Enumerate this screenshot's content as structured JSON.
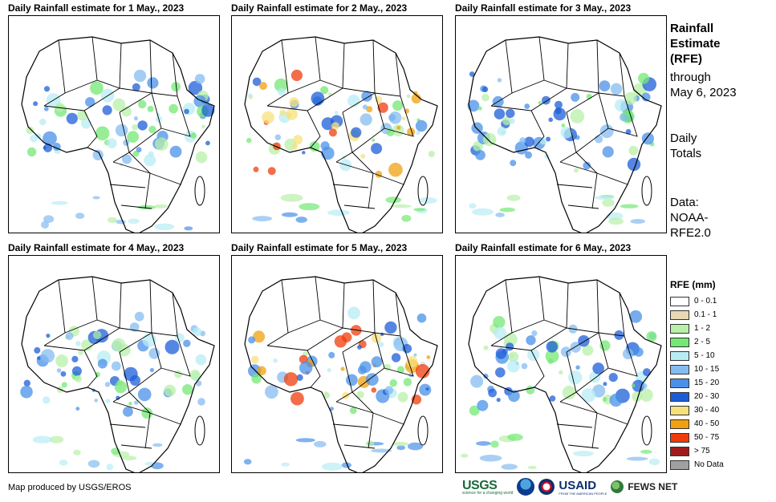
{
  "panels": [
    {
      "title": "Daily Rainfall estimate for 1 May., 2023"
    },
    {
      "title": "Daily Rainfall estimate for 2 May., 2023"
    },
    {
      "title": "Daily Rainfall estimate for 3 May., 2023"
    },
    {
      "title": "Daily Rainfall estimate for 4 May., 2023"
    },
    {
      "title": "Daily Rainfall estimate for 5 May., 2023"
    },
    {
      "title": "Daily Rainfall estimate for 6 May., 2023"
    }
  ],
  "sidebar": {
    "title": "Rainfall\nEstimate\n(RFE)",
    "through": "through\nMay 6, 2023",
    "totals": "Daily\nTotals",
    "source": "Data:\nNOAA-\nRFE2.0"
  },
  "legend": {
    "title": "RFE (mm)",
    "items": [
      {
        "label": "0 - 0.1",
        "color": "#ffffff"
      },
      {
        "label": "0.1 - 1",
        "color": "#e8d8b4"
      },
      {
        "label": "1 - 2",
        "color": "#b8f0a8"
      },
      {
        "label": "2 - 5",
        "color": "#74e874"
      },
      {
        "label": "5 - 10",
        "color": "#b8ecf4"
      },
      {
        "label": "10 - 15",
        "color": "#84bcf0"
      },
      {
        "label": "15 - 20",
        "color": "#4a90e8"
      },
      {
        "label": "20 - 30",
        "color": "#1c5ed8"
      },
      {
        "label": "30 - 40",
        "color": "#f8e07c"
      },
      {
        "label": "40 - 50",
        "color": "#f0a010"
      },
      {
        "label": "50 - 75",
        "color": "#f03c0c"
      },
      {
        "label": "> 75",
        "color": "#a01c1c"
      },
      {
        "label": "No Data",
        "color": "#a0a0a0"
      }
    ]
  },
  "footer": {
    "credit": "Map produced by USGS/EROS"
  },
  "logos": {
    "usgs": "USGS",
    "usgs_tagline": "science for a changing world",
    "usaid": "USAID",
    "usaid_tagline": "FROM THE AMERICAN PEOPLE",
    "fews": "FEWS NET"
  }
}
